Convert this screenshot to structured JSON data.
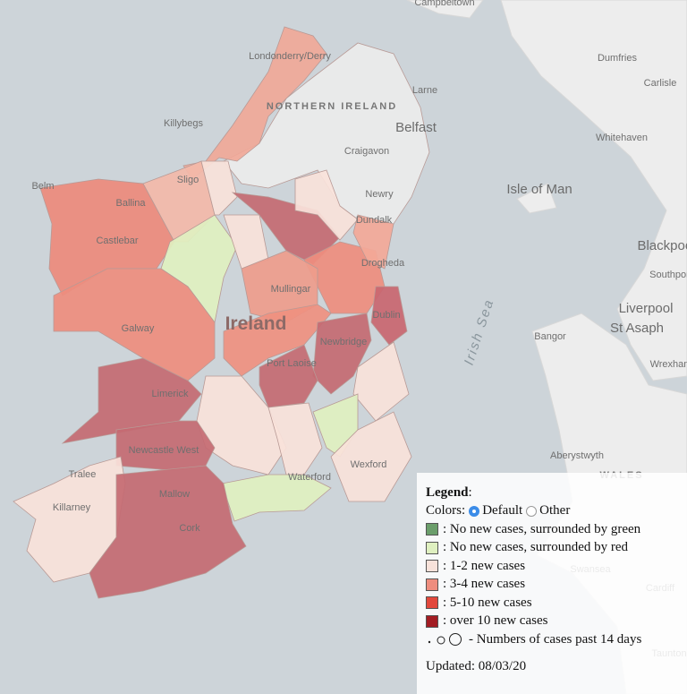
{
  "map": {
    "labels": [
      "Campbeltown",
      "Londonderry/Derry",
      "Dumfries",
      "Carlisle",
      "Larne",
      "NORTHERN IRELAND",
      "Belfast",
      "Killybegs",
      "Craigavon",
      "Whitehaven",
      "Isle of Man",
      "Newry",
      "Belm",
      "Ballina",
      "Sligo",
      "Dundalk",
      "Castlebar",
      "Drogheda",
      "Blackpool",
      "Southport",
      "Irish Sea",
      "Mullingar",
      "Liverpool",
      "Dublin",
      "Ireland",
      "Galway",
      "Newbridge",
      "Bangor",
      "St Asaph",
      "Wrexham",
      "Port Laoise",
      "Limerick",
      "Newcastle West",
      "Aberystwyth",
      "Tralee",
      "Waterford",
      "Wexford",
      "WALES",
      "Killarney",
      "Mallow",
      "Cork",
      "Swansea",
      "Cardiff",
      "Taunton"
    ]
  },
  "legend": {
    "title": "Legend",
    "colors_label": "Colors:",
    "options": [
      "Default",
      "Other"
    ],
    "selected": "Default",
    "items": [
      {
        "color": "#6b9e6b",
        "label": ": No new cases, surrounded by green"
      },
      {
        "color": "#dff0c0",
        "label": ": No new cases, surrounded by red"
      },
      {
        "color": "#f8e2da",
        "label": ": 1-2 new cases"
      },
      {
        "color": "#ee8d7e",
        "label": ": 3-4 new cases"
      },
      {
        "color": "#e2483c",
        "label": ": 5-10 new cases"
      },
      {
        "color": "#a31d23",
        "label": ": over 10 new cases"
      }
    ],
    "circles_label": "- Numbers of cases past 14 days",
    "updated": "Updated: 08/03/20"
  }
}
